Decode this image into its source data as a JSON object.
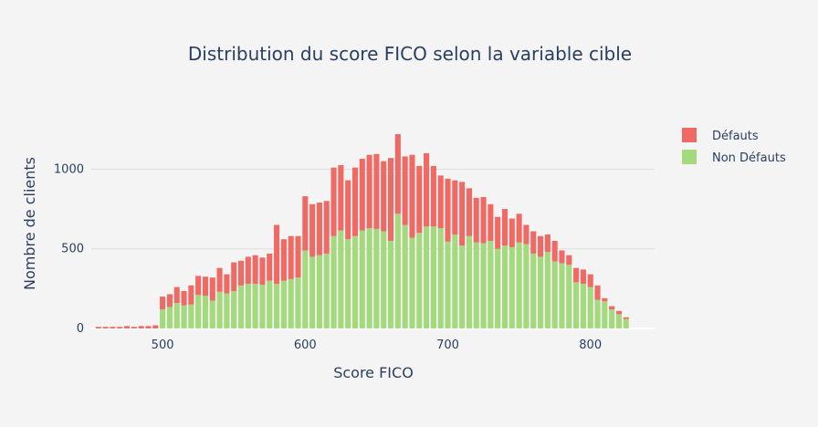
{
  "chart_data": {
    "type": "bar",
    "barmode": "stack",
    "title": "Distribution du score FICO selon la variable cible",
    "xlabel": "Score FICO",
    "ylabel": "Nombre de clients",
    "xlim": [
      450,
      845
    ],
    "ylim": [
      0,
      1260
    ],
    "x_ticks": [
      500,
      600,
      700,
      800
    ],
    "y_ticks": [
      0,
      500,
      1000
    ],
    "grid": "horizontal",
    "legend_position": "top-right",
    "colors": {
      "defauts": "#ef6a64",
      "non_defauts": "#a4d97e"
    },
    "x": [
      455,
      460,
      465,
      470,
      475,
      480,
      485,
      490,
      495,
      500,
      505,
      510,
      515,
      520,
      525,
      530,
      535,
      540,
      545,
      550,
      555,
      560,
      565,
      570,
      575,
      580,
      585,
      590,
      595,
      600,
      605,
      610,
      615,
      620,
      625,
      630,
      635,
      640,
      645,
      650,
      655,
      660,
      665,
      670,
      675,
      680,
      685,
      690,
      695,
      700,
      705,
      710,
      715,
      720,
      725,
      730,
      735,
      740,
      745,
      750,
      755,
      760,
      765,
      770,
      775,
      780,
      785,
      790,
      795,
      800,
      805,
      810,
      815,
      820,
      825
    ],
    "series": [
      {
        "name": "Non Défauts",
        "key": "non_defauts",
        "values": [
          0,
          0,
          0,
          0,
          0,
          0,
          0,
          0,
          0,
          120,
          135,
          160,
          145,
          150,
          210,
          205,
          175,
          230,
          220,
          235,
          270,
          280,
          280,
          275,
          300,
          280,
          300,
          310,
          320,
          490,
          450,
          460,
          470,
          580,
          615,
          560,
          580,
          615,
          630,
          625,
          610,
          550,
          720,
          650,
          570,
          600,
          640,
          640,
          630,
          545,
          590,
          520,
          580,
          540,
          535,
          550,
          500,
          520,
          510,
          540,
          530,
          470,
          450,
          480,
          420,
          410,
          400,
          290,
          280,
          260,
          180,
          170,
          120,
          90,
          60
        ],
        "values_note": ""
      },
      {
        "name": "Défauts",
        "key": "defauts",
        "values": [
          10,
          10,
          10,
          10,
          15,
          10,
          15,
          15,
          20,
          80,
          80,
          100,
          90,
          120,
          120,
          120,
          145,
          150,
          120,
          180,
          155,
          170,
          180,
          170,
          170,
          370,
          260,
          270,
          260,
          340,
          330,
          330,
          330,
          430,
          410,
          370,
          430,
          450,
          460,
          470,
          440,
          520,
          500,
          430,
          520,
          420,
          460,
          380,
          330,
          395,
          340,
          400,
          300,
          280,
          290,
          230,
          200,
          230,
          180,
          180,
          120,
          140,
          130,
          110,
          130,
          80,
          60,
          90,
          90,
          80,
          90,
          20,
          20,
          20,
          10
        ]
      }
    ]
  }
}
